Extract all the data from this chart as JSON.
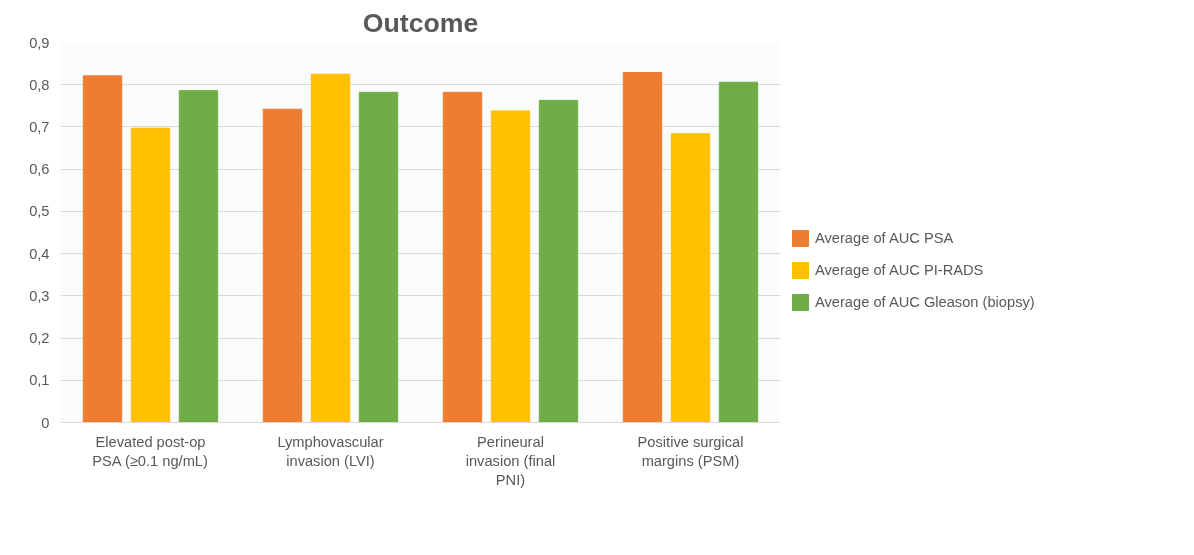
{
  "chart_data": {
    "type": "bar",
    "title": "Outcome",
    "categories": [
      "Elevated post-op PSA (≥0.1 ng/mL)",
      "Lymphovascular invasion (LVI)",
      "Perineural invasion (final PNI)",
      "Positive surgical margins (PSM)"
    ],
    "series": [
      {
        "name": "Average of AUC PSA",
        "color": "#ed7d31",
        "values": [
          0.821,
          0.742,
          0.782,
          0.829
        ]
      },
      {
        "name": "Average of AUC PI-RADS",
        "color": "#ffc000",
        "values": [
          0.697,
          0.825,
          0.738,
          0.684
        ]
      },
      {
        "name": "Average of AUC Gleason (biopsy)",
        "color": "#70ad47",
        "values": [
          0.786,
          0.782,
          0.763,
          0.806
        ]
      }
    ],
    "ylim": [
      0,
      0.9
    ],
    "yticks": [
      0,
      {
        "value": 0.1,
        "label": "0,1"
      },
      {
        "value": 0.2,
        "label": "0,2"
      },
      {
        "value": 0.3,
        "label": "0,3"
      },
      {
        "value": 0.4,
        "label": "0,4"
      },
      {
        "value": 0.5,
        "label": "0,5"
      },
      {
        "value": 0.6,
        "label": "0,6"
      },
      {
        "value": 0.7,
        "label": "0,7"
      },
      {
        "value": 0.8,
        "label": "0,8"
      },
      {
        "value": 0.9,
        "label": "0,9"
      }
    ],
    "grid": "y",
    "legend": "right"
  }
}
